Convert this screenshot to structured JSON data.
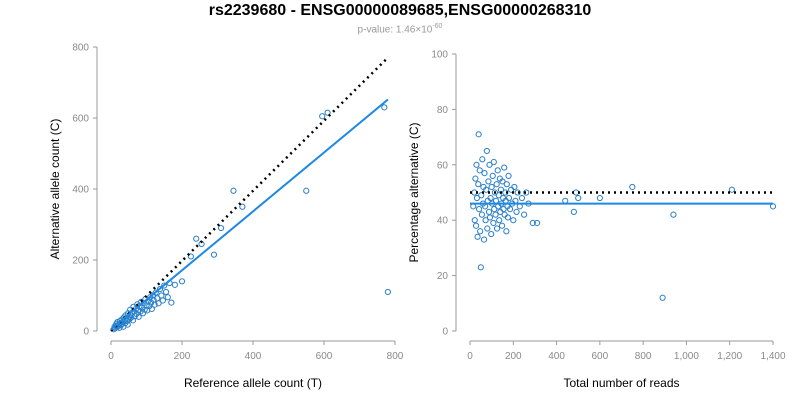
{
  "header": {
    "title": "rs2239680 - ENSG00000089685,ENSG00000268310",
    "subtitle_prefix": "p-value: 1.46×10",
    "subtitle_exp": "-60"
  },
  "colors": {
    "points": "#2a7fc8",
    "fit_line": "#1e88e5",
    "reference_line": "#000000"
  },
  "chart_data": [
    {
      "type": "scatter",
      "xlabel": "Reference allele count (T)",
      "ylabel": "Alternative allele count (C)",
      "xlim": [
        0,
        800
      ],
      "ylim": [
        0,
        800
      ],
      "xticks": [
        0,
        200,
        400,
        600,
        800
      ],
      "yticks": [
        0,
        200,
        400,
        600,
        800
      ],
      "xtick_labels": [
        "0",
        "200",
        "400",
        "600",
        "800"
      ],
      "ytick_labels": [
        "0",
        "200",
        "400",
        "600",
        "800"
      ],
      "grid": false,
      "points": [
        [
          8,
          5
        ],
        [
          10,
          12
        ],
        [
          12,
          8
        ],
        [
          14,
          15
        ],
        [
          15,
          20
        ],
        [
          17,
          11
        ],
        [
          18,
          25
        ],
        [
          20,
          14
        ],
        [
          22,
          18
        ],
        [
          24,
          9
        ],
        [
          25,
          28
        ],
        [
          27,
          22
        ],
        [
          28,
          16
        ],
        [
          30,
          32
        ],
        [
          31,
          20
        ],
        [
          33,
          26
        ],
        [
          35,
          12
        ],
        [
          36,
          38
        ],
        [
          38,
          30
        ],
        [
          40,
          22
        ],
        [
          41,
          44
        ],
        [
          43,
          35
        ],
        [
          45,
          28
        ],
        [
          47,
          18
        ],
        [
          48,
          50
        ],
        [
          50,
          40
        ],
        [
          52,
          33
        ],
        [
          54,
          60
        ],
        [
          55,
          45
        ],
        [
          57,
          38
        ],
        [
          60,
          52
        ],
        [
          62,
          30
        ],
        [
          63,
          68
        ],
        [
          65,
          55
        ],
        [
          67,
          42
        ],
        [
          70,
          62
        ],
        [
          72,
          48
        ],
        [
          74,
          75
        ],
        [
          76,
          58
        ],
        [
          78,
          40
        ],
        [
          80,
          70
        ],
        [
          83,
          55
        ],
        [
          85,
          82
        ],
        [
          87,
          66
        ],
        [
          90,
          50
        ],
        [
          92,
          78
        ],
        [
          95,
          60
        ],
        [
          97,
          90
        ],
        [
          100,
          72
        ],
        [
          102,
          58
        ],
        [
          105,
          85
        ],
        [
          108,
          70
        ],
        [
          110,
          95
        ],
        [
          113,
          80
        ],
        [
          115,
          62
        ],
        [
          118,
          100
        ],
        [
          120,
          88
        ],
        [
          123,
          74
        ],
        [
          126,
          108
        ],
        [
          130,
          92
        ],
        [
          134,
          78
        ],
        [
          138,
          118
        ],
        [
          142,
          100
        ],
        [
          146,
          86
        ],
        [
          150,
          128
        ],
        [
          155,
          110
        ],
        [
          160,
          95
        ],
        [
          165,
          135
        ],
        [
          170,
          80
        ],
        [
          180,
          130
        ],
        [
          200,
          140
        ],
        [
          225,
          210
        ],
        [
          240,
          260
        ],
        [
          255,
          245
        ],
        [
          290,
          215
        ],
        [
          310,
          290
        ],
        [
          345,
          395
        ],
        [
          370,
          350
        ],
        [
          550,
          395
        ],
        [
          595,
          605
        ],
        [
          610,
          615
        ],
        [
          770,
          630
        ],
        [
          780,
          110
        ]
      ],
      "fit_line": [
        [
          0,
          5
        ],
        [
          780,
          652
        ]
      ],
      "reference_line": [
        [
          0,
          0
        ],
        [
          780,
          770
        ]
      ]
    },
    {
      "type": "scatter",
      "xlabel": "Total number of reads",
      "ylabel": "Percentage alternative (C)",
      "xlim": [
        0,
        1400
      ],
      "ylim": [
        0,
        100
      ],
      "xticks": [
        0,
        200,
        400,
        600,
        800,
        1000,
        1200,
        1400
      ],
      "yticks": [
        0,
        20,
        40,
        60,
        80,
        100
      ],
      "xtick_labels": [
        "0",
        "200",
        "400",
        "600",
        "800",
        "1,000",
        "1,200",
        "1,400"
      ],
      "ytick_labels": [
        "0",
        "20",
        "40",
        "60",
        "80",
        "100"
      ],
      "grid": false,
      "points": [
        [
          15,
          45
        ],
        [
          20,
          50
        ],
        [
          22,
          40
        ],
        [
          25,
          55
        ],
        [
          28,
          38
        ],
        [
          30,
          60
        ],
        [
          32,
          48
        ],
        [
          35,
          34
        ],
        [
          38,
          53
        ],
        [
          40,
          71
        ],
        [
          42,
          44
        ],
        [
          45,
          58
        ],
        [
          47,
          36
        ],
        [
          50,
          23
        ],
        [
          52,
          49
        ],
        [
          55,
          42
        ],
        [
          57,
          62
        ],
        [
          60,
          46
        ],
        [
          62,
          52
        ],
        [
          65,
          33
        ],
        [
          67,
          57
        ],
        [
          70,
          45
        ],
        [
          72,
          40
        ],
        [
          75,
          51
        ],
        [
          78,
          65
        ],
        [
          80,
          37
        ],
        [
          82,
          47
        ],
        [
          85,
          54
        ],
        [
          88,
          43
        ],
        [
          90,
          60
        ],
        [
          92,
          41
        ],
        [
          95,
          48
        ],
        [
          98,
          35
        ],
        [
          100,
          52
        ],
        [
          102,
          46
        ],
        [
          105,
          56
        ],
        [
          108,
          39
        ],
        [
          110,
          61
        ],
        [
          112,
          44
        ],
        [
          115,
          50
        ],
        [
          118,
          42
        ],
        [
          120,
          47
        ],
        [
          123,
          53
        ],
        [
          125,
          37
        ],
        [
          128,
          58
        ],
        [
          130,
          45
        ],
        [
          133,
          49
        ],
        [
          135,
          40
        ],
        [
          138,
          55
        ],
        [
          140,
          43
        ],
        [
          143,
          51
        ],
        [
          145,
          46
        ],
        [
          148,
          38
        ],
        [
          150,
          54
        ],
        [
          153,
          48
        ],
        [
          155,
          44
        ],
        [
          158,
          59
        ],
        [
          160,
          42
        ],
        [
          163,
          50
        ],
        [
          165,
          47
        ],
        [
          168,
          36
        ],
        [
          170,
          53
        ],
        [
          173,
          45
        ],
        [
          175,
          41
        ],
        [
          178,
          56
        ],
        [
          180,
          48
        ],
        [
          185,
          44
        ],
        [
          190,
          51
        ],
        [
          195,
          46
        ],
        [
          200,
          40
        ],
        [
          205,
          52
        ],
        [
          210,
          47
        ],
        [
          215,
          43
        ],
        [
          220,
          50
        ],
        [
          230,
          45
        ],
        [
          240,
          48
        ],
        [
          250,
          42
        ],
        [
          260,
          50
        ],
        [
          270,
          46
        ],
        [
          290,
          39
        ],
        [
          310,
          39
        ],
        [
          440,
          47
        ],
        [
          480,
          43
        ],
        [
          490,
          50
        ],
        [
          500,
          48
        ],
        [
          600,
          48
        ],
        [
          750,
          52
        ],
        [
          890,
          12
        ],
        [
          940,
          42
        ],
        [
          1210,
          51
        ],
        [
          1400,
          45
        ]
      ],
      "fit_line": [
        [
          0,
          46
        ],
        [
          1400,
          46
        ]
      ],
      "reference_line": [
        [
          0,
          50
        ],
        [
          1400,
          50
        ]
      ]
    }
  ]
}
